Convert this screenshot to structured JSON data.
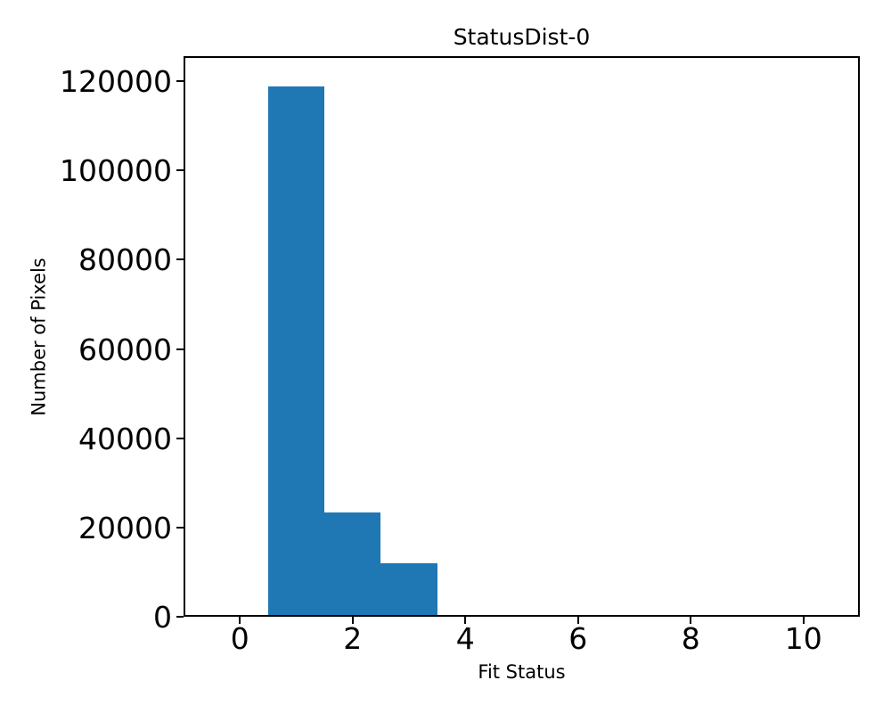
{
  "chart_data": {
    "type": "bar",
    "subtype": "histogram",
    "title": "StatusDist-0",
    "xlabel": "Fit Status",
    "ylabel": "Number of Pixels",
    "bar_color": "#1f77b4",
    "axis_color": "#000000",
    "text_color": "#000000",
    "background_color": "#ffffff",
    "bin_edges": [
      0.5,
      1.5,
      2.5,
      3.5,
      4.5
    ],
    "bin_centers": [
      1,
      2,
      3,
      4
    ],
    "counts": [
      118800,
      23400,
      12000,
      400
    ],
    "xlim": [
      -1,
      11
    ],
    "ylim": [
      0,
      125600
    ],
    "xticks": [
      0,
      2,
      4,
      6,
      8,
      10
    ],
    "yticks": [
      0,
      20000,
      40000,
      60000,
      80000,
      100000,
      120000
    ],
    "grid": false,
    "legend": null
  }
}
